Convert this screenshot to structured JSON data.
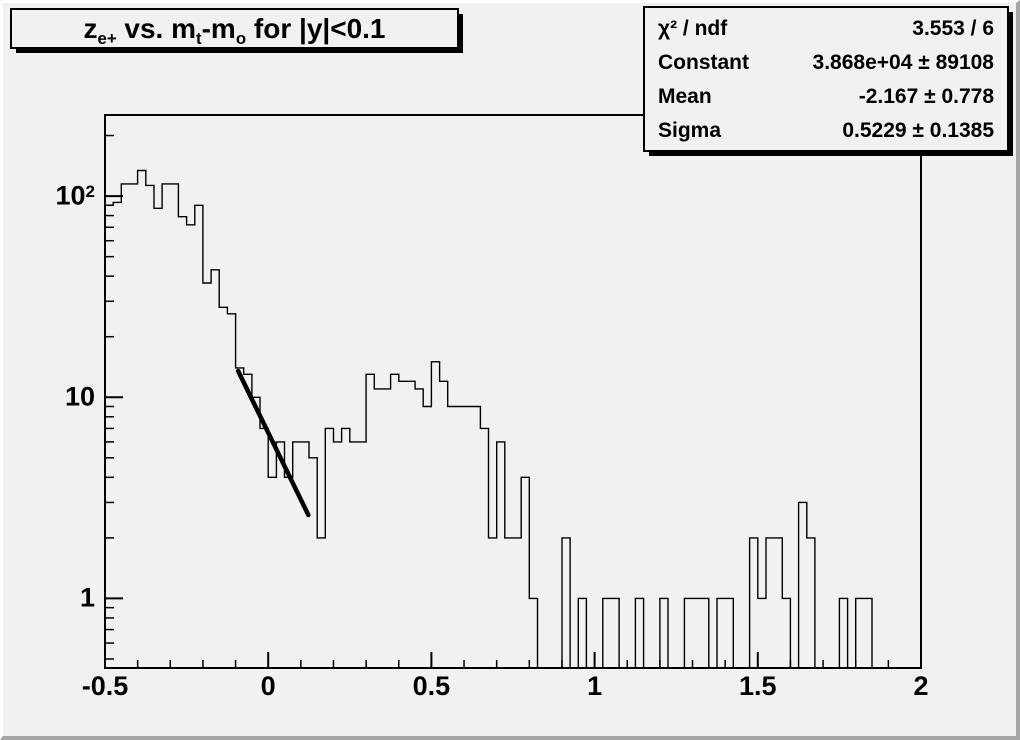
{
  "canvas": {
    "bg": "#f1f1f1",
    "border_light": "#fdfdfd",
    "border_dark": "#a6a6a6",
    "line_color": "#000000"
  },
  "title": {
    "segments": [
      {
        "t": "z"
      },
      {
        "t": "e+",
        "sub": true
      },
      {
        "t": " vs. m"
      },
      {
        "t": "t",
        "sub": true
      },
      {
        "t": "-m"
      },
      {
        "t": "o",
        "sub": true
      },
      {
        "t": " for |y|<0.1"
      }
    ],
    "plain": "z_e+ vs. m_t-m_o for |y|<0.1"
  },
  "stats": {
    "rows": [
      {
        "label": "χ² / ndf",
        "value": "3.553 / 6"
      },
      {
        "label": "Constant",
        "value": "3.868e+04 ± 89108"
      },
      {
        "label": "Mean",
        "value": "-2.167 ± 0.778"
      },
      {
        "label": "Sigma",
        "value": "0.5229 ± 0.1385"
      }
    ]
  },
  "chart_data": {
    "type": "bar",
    "subtype": "step-histogram",
    "title": "z_e+ vs. m_t-m_o for |y|<0.1",
    "xlabel": "",
    "ylabel": "",
    "x_range": [
      -0.5,
      2.0
    ],
    "y_range": [
      0.451,
      253
    ],
    "y_log": true,
    "grid": false,
    "x_start": -0.5,
    "bin_width": 0.025,
    "values": [
      90,
      93,
      115,
      115,
      134,
      113,
      87,
      115,
      115,
      79,
      72,
      90,
      37,
      43,
      28,
      26,
      14,
      13,
      10,
      7,
      4,
      6,
      4,
      6,
      6,
      5,
      2,
      7,
      6,
      7,
      6,
      6,
      13,
      11,
      11,
      13,
      12,
      12,
      11,
      9,
      15,
      12,
      9,
      9,
      9,
      9,
      7,
      2,
      6,
      2,
      2,
      4,
      1,
      0,
      0,
      0,
      2,
      0,
      1,
      0,
      0,
      1,
      1,
      0,
      0,
      1,
      0,
      0,
      1,
      0,
      0,
      1,
      1,
      1,
      0,
      1,
      1,
      0,
      0,
      2,
      1,
      2,
      2,
      1,
      0,
      3,
      2,
      0,
      0,
      0,
      1,
      0,
      1,
      1,
      0,
      0,
      0,
      0,
      0,
      0
    ],
    "x_ticks": [
      {
        "v": -0.5,
        "label": "-0.5"
      },
      {
        "v": 0,
        "label": "0"
      },
      {
        "v": 0.5,
        "label": "0.5"
      },
      {
        "v": 1,
        "label": "1"
      },
      {
        "v": 1.5,
        "label": "1.5"
      },
      {
        "v": 2,
        "label": "2"
      }
    ],
    "x_minor_step": 0.1,
    "y_ticks": [
      {
        "v": 1,
        "base": "1",
        "exp": ""
      },
      {
        "v": 10,
        "base": "10",
        "exp": ""
      },
      {
        "v": 100,
        "base": "10",
        "exp": "2"
      }
    ],
    "fit_line": {
      "x1": -0.092,
      "v1": 13.5,
      "x2": 0.123,
      "v2": 2.6
    }
  }
}
